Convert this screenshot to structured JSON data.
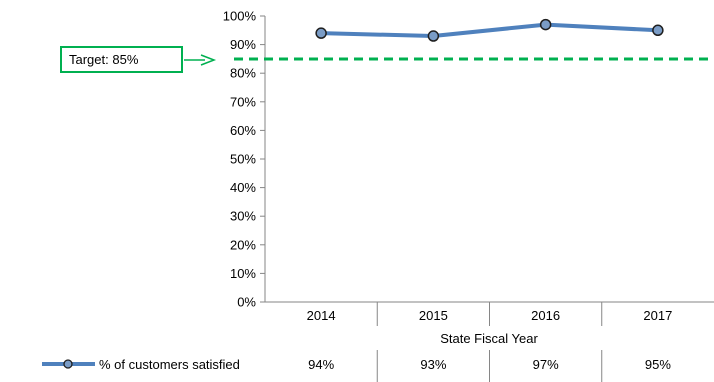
{
  "chart_data": {
    "type": "line",
    "x": [
      "2014",
      "2015",
      "2016",
      "2017"
    ],
    "xlabel": "State Fiscal Year",
    "ylabel": "",
    "ylim": [
      0,
      100
    ],
    "yticks": [
      "0%",
      "10%",
      "20%",
      "30%",
      "40%",
      "50%",
      "60%",
      "70%",
      "80%",
      "90%",
      "100%"
    ],
    "series": [
      {
        "name": "% of customers satisfied",
        "values": [
          94,
          93,
          97,
          95
        ],
        "labels": [
          "94%",
          "93%",
          "97%",
          "95%"
        ],
        "color": "#4f81bd",
        "marker_fill": "#7a9cc6"
      }
    ],
    "target": {
      "value": 85,
      "label": "Target: 85%",
      "color": "#00b050"
    },
    "grid": "vertical gridlines between years",
    "legend": "bottom-left data table"
  }
}
